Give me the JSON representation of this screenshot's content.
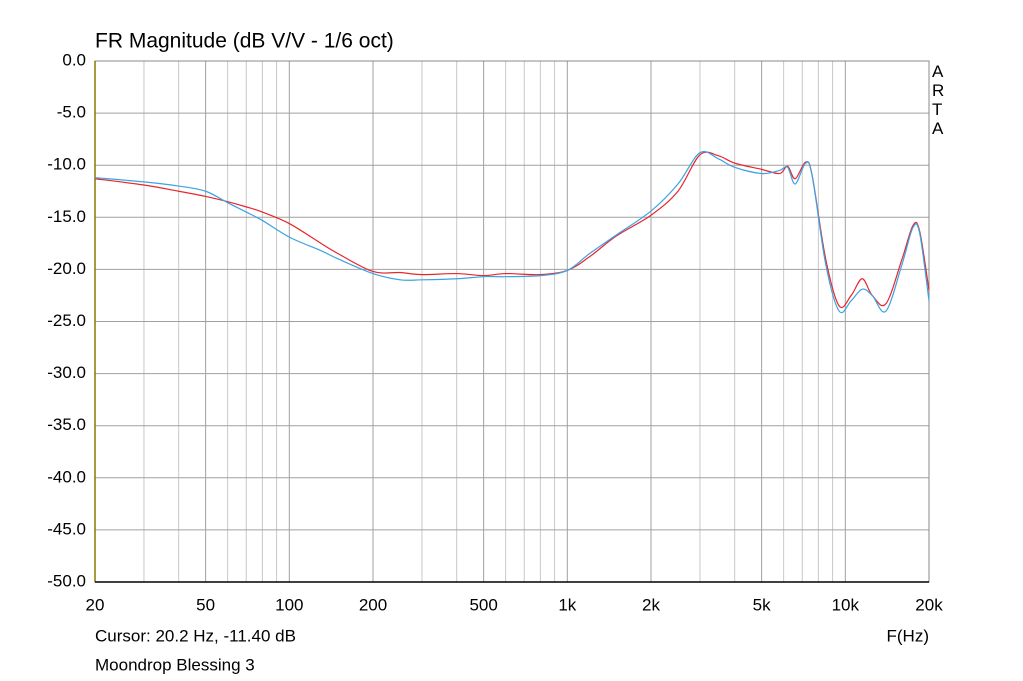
{
  "chart_data": {
    "type": "line",
    "title": "FR Magnitude (dB V/V - 1/6 oct)",
    "watermark": "ARTA",
    "cursor": "Cursor: 20.2 Hz, -11.40 dB",
    "xlabel": "F(Hz)",
    "caption": "Moondrop Blessing 3",
    "xscale": "log",
    "grid": true,
    "xlim": [
      20,
      20000
    ],
    "ylim": [
      -50,
      0
    ],
    "xticks": [
      20,
      50,
      100,
      200,
      500,
      {
        "value": 1000,
        "label": "1k"
      },
      {
        "value": 2000,
        "label": "2k"
      },
      {
        "value": 5000,
        "label": "5k"
      },
      {
        "value": 10000,
        "label": "10k"
      },
      {
        "value": 20000,
        "label": "20k"
      }
    ],
    "xminor": [
      30,
      40,
      60,
      70,
      80,
      90,
      300,
      400,
      600,
      700,
      800,
      900,
      3000,
      4000,
      6000,
      7000,
      8000,
      9000
    ],
    "yticks": [
      {
        "value": 0,
        "label": "0.0"
      },
      {
        "value": -5,
        "label": "-5.0"
      },
      {
        "value": -10,
        "label": "-10.0"
      },
      {
        "value": -15,
        "label": "-15.0"
      },
      {
        "value": -20,
        "label": "-20.0"
      },
      {
        "value": -25,
        "label": "-25.0"
      },
      {
        "value": -30,
        "label": "-30.0"
      },
      {
        "value": -35,
        "label": "-35.0"
      },
      {
        "value": -40,
        "label": "-40.0"
      },
      {
        "value": -45,
        "label": "-45.0"
      },
      {
        "value": -50,
        "label": "-50.0"
      }
    ],
    "x": [
      20,
      30,
      40,
      50,
      60,
      70,
      80,
      100,
      130,
      150,
      200,
      250,
      300,
      400,
      500,
      600,
      800,
      1000,
      1200,
      1500,
      2000,
      2500,
      3000,
      3500,
      4000,
      5000,
      5800,
      6200,
      6600,
      7200,
      7600,
      8500,
      9500,
      10500,
      11500,
      12500,
      14000,
      16000,
      17500,
      18500,
      20000
    ],
    "series": [
      {
        "color": "#e8262b",
        "values": [
          -11.3,
          -11.9,
          -12.5,
          -13.0,
          -13.5,
          -14.0,
          -14.5,
          -15.6,
          -17.5,
          -18.5,
          -20.2,
          -20.3,
          -20.5,
          -20.4,
          -20.6,
          -20.4,
          -20.5,
          -20.1,
          -18.8,
          -16.8,
          -14.8,
          -12.5,
          -9.0,
          -9.1,
          -9.8,
          -10.4,
          -10.8,
          -10.1,
          -11.3,
          -9.7,
          -11,
          -19,
          -23.5,
          -22.5,
          -20.9,
          -22.5,
          -23.3,
          -19,
          -15.8,
          -16.3,
          -22
        ]
      },
      {
        "color": "#3ba3e3",
        "values": [
          -11.2,
          -11.6,
          -12.0,
          -12.5,
          -13.6,
          -14.5,
          -15.3,
          -16.9,
          -18.2,
          -19.0,
          -20.4,
          -21.0,
          -21.0,
          -20.9,
          -20.7,
          -20.7,
          -20.6,
          -20.1,
          -18.5,
          -16.7,
          -14.4,
          -11.8,
          -8.8,
          -9.4,
          -10.2,
          -10.8,
          -10.5,
          -10.2,
          -11.8,
          -9.8,
          -11,
          -19.5,
          -24,
          -23,
          -21.9,
          -22.5,
          -24,
          -19.5,
          -16,
          -16.5,
          -23
        ]
      }
    ]
  }
}
